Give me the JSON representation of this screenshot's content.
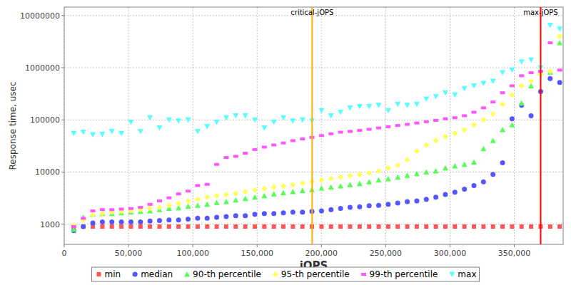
{
  "chart_data": {
    "type": "scatter",
    "x_label": "jOPS",
    "y_label": "Response time, usec",
    "log": "y",
    "grid": true,
    "legend": "bottom",
    "xlim": [
      0,
      388000
    ],
    "ylim": [
      410,
      14500000
    ],
    "xticks": [
      0,
      {
        "value": 50000,
        "label": "50,000"
      },
      {
        "value": 100000,
        "label": "100,000"
      },
      {
        "value": 150000,
        "label": "150,000"
      },
      {
        "value": 200000,
        "label": "200,000"
      },
      {
        "value": 250000,
        "label": "250,000"
      },
      {
        "value": 300000,
        "label": "300,000"
      },
      {
        "value": 350000,
        "label": "350,000"
      }
    ],
    "yticks": [
      1000,
      10000,
      100000,
      1000000,
      10000000
    ],
    "annotations": [
      {
        "label": "critical-jOPS",
        "x": 192800,
        "color": "#ffb000"
      },
      {
        "label": "max-jOPS",
        "x": 370500,
        "color": "#ff0000"
      }
    ],
    "x": [
      7410,
      14820,
      22230,
      29640,
      37050,
      44460,
      51870,
      59280,
      66690,
      74100,
      81510,
      88920,
      96330,
      103740,
      111150,
      118560,
      125970,
      133380,
      140790,
      148200,
      155610,
      163020,
      170430,
      177840,
      185250,
      192660,
      200070,
      207480,
      214890,
      222300,
      229710,
      237120,
      244530,
      251940,
      259350,
      266760,
      274170,
      281580,
      288990,
      296400,
      303810,
      311220,
      318630,
      326040,
      333450,
      340860,
      348270,
      355680,
      363090,
      370500,
      377910,
      385320
    ],
    "series": [
      {
        "name": "min",
        "color": "#ff5555",
        "marker": "square",
        "values": [
          900,
          900,
          900,
          900,
          900,
          900,
          900,
          900,
          900,
          900,
          900,
          900,
          900,
          900,
          900,
          900,
          900,
          900,
          900,
          900,
          900,
          900,
          900,
          900,
          900,
          900,
          900,
          900,
          900,
          900,
          900,
          900,
          900,
          900,
          900,
          900,
          900,
          900,
          900,
          900,
          900,
          900,
          900,
          900,
          900,
          900,
          900,
          900,
          900,
          900,
          900,
          900
        ]
      },
      {
        "name": "median",
        "color": "#5555ff",
        "marker": "circle",
        "values": [
          750,
          900,
          1050,
          1100,
          1100,
          1100,
          1100,
          1100,
          1150,
          1180,
          1200,
          1200,
          1250,
          1300,
          1300,
          1350,
          1400,
          1450,
          1450,
          1550,
          1600,
          1600,
          1650,
          1700,
          1700,
          1750,
          1800,
          1900,
          2000,
          2100,
          2150,
          2250,
          2300,
          2400,
          2550,
          2700,
          2800,
          3000,
          3300,
          3700,
          4100,
          4700,
          5500,
          6500,
          9000,
          15000,
          105000,
          190000,
          120000,
          350000,
          620000,
          520000
        ]
      },
      {
        "name": "90-th percentile",
        "color": "#55ff55",
        "marker": "triangle-up",
        "values": [
          800,
          1350,
          1550,
          1600,
          1600,
          1650,
          1700,
          1750,
          1800,
          1900,
          2000,
          2050,
          2200,
          2300,
          2400,
          2600,
          2700,
          2900,
          3100,
          3300,
          3500,
          3800,
          4000,
          4200,
          4400,
          4600,
          4900,
          5100,
          5400,
          5700,
          6000,
          6500,
          7000,
          7400,
          8000,
          8600,
          9300,
          10000,
          10500,
          12000,
          13000,
          14000,
          15500,
          28000,
          40000,
          65000,
          80000,
          210000,
          450000,
          800000,
          820000,
          3000000
        ]
      },
      {
        "name": "95-th percentile",
        "color": "#ffff55",
        "marker": "diamond",
        "values": [
          950,
          1200,
          1500,
          1600,
          1700,
          1750,
          1800,
          1900,
          2000,
          2100,
          2300,
          2500,
          2800,
          3000,
          3300,
          3500,
          3700,
          3900,
          4200,
          4500,
          4800,
          5100,
          5400,
          5700,
          6100,
          6500,
          7000,
          7500,
          8000,
          8500,
          9000,
          9500,
          10500,
          12000,
          13500,
          17000,
          25000,
          33000,
          40000,
          48000,
          55000,
          65000,
          80000,
          100000,
          130000,
          200000,
          300000,
          450000,
          550000,
          750000,
          850000,
          4000000
        ]
      },
      {
        "name": "99-th percentile",
        "color": "#ff55ff",
        "marker": "rect",
        "values": [
          900,
          1300,
          1800,
          1900,
          1900,
          1950,
          2000,
          2100,
          2400,
          2800,
          3200,
          3800,
          4300,
          5500,
          5800,
          14000,
          19000,
          20000,
          23000,
          27000,
          30000,
          33000,
          36000,
          40000,
          43000,
          46000,
          50000,
          54000,
          58000,
          60000,
          63000,
          66000,
          70000,
          74000,
          78000,
          82000,
          87000,
          92000,
          98000,
          105000,
          110000,
          120000,
          140000,
          170000,
          220000,
          330000,
          450000,
          700000,
          800000,
          850000,
          3000000,
          900000
        ]
      },
      {
        "name": "max",
        "color": "#55ffff",
        "marker": "triangle-down",
        "values": [
          55000,
          58000,
          52000,
          53000,
          60000,
          55000,
          90000,
          60000,
          110000,
          70000,
          100000,
          95000,
          100000,
          60000,
          75000,
          90000,
          110000,
          120000,
          120000,
          100000,
          70000,
          90000,
          110000,
          95000,
          100000,
          95000,
          150000,
          120000,
          140000,
          170000,
          180000,
          180000,
          190000,
          150000,
          200000,
          190000,
          200000,
          250000,
          280000,
          330000,
          300000,
          400000,
          450000,
          500000,
          550000,
          800000,
          900000,
          1300000,
          1400000,
          1000000,
          6500000,
          5500000
        ]
      }
    ]
  }
}
